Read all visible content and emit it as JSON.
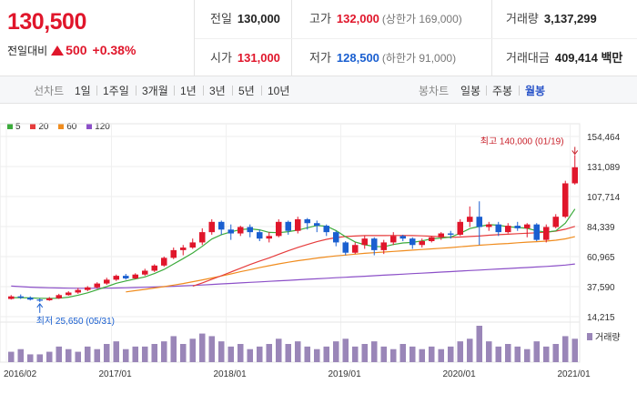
{
  "summary": {
    "price": "130,500",
    "change_label": "전일대비",
    "change_value": "500",
    "change_pct": "+0.38%",
    "prev_close": {
      "label": "전일",
      "value": "130,000"
    },
    "open": {
      "label": "시가",
      "value": "131,000"
    },
    "high": {
      "label": "고가",
      "value": "132,000",
      "note": "(상한가 169,000)"
    },
    "low": {
      "label": "저가",
      "value": "128,500",
      "note": "(하한가 91,000)"
    },
    "volume": {
      "label": "거래량",
      "value": "3,137,299"
    },
    "amount": {
      "label": "거래대금",
      "value": "409,414",
      "unit": "백만"
    }
  },
  "toolbar": {
    "line_label": "선차트",
    "line_periods": [
      "1일",
      "1주일",
      "3개월",
      "1년",
      "3년",
      "5년",
      "10년"
    ],
    "candle_label": "봉차트",
    "candle_periods": [
      "일봉",
      "주봉",
      "월봉"
    ],
    "active_candle": "월봉"
  },
  "colors": {
    "up": "#e0162b",
    "down": "#1a5fd0",
    "ma5": "#3cab3c",
    "ma20": "#e63c3c",
    "ma60": "#f08c1e",
    "ma120": "#8c50c8"
  },
  "chart_data": {
    "type": "candlestick",
    "legend": [
      {
        "name": "5",
        "color": "#3cab3c"
      },
      {
        "name": "20",
        "color": "#e63c3c"
      },
      {
        "name": "60",
        "color": "#f08c1e"
      },
      {
        "name": "120",
        "color": "#8c50c8"
      }
    ],
    "y_ticks": [
      "154,464",
      "131,089",
      "107,714",
      "84,339",
      "60,965",
      "37,590",
      "14,215"
    ],
    "y_tick_values": [
      154464,
      131089,
      107714,
      84339,
      60965,
      37590,
      14215
    ],
    "x_ticks": [
      "2016/02",
      "2017/01",
      "2018/01",
      "2019/01",
      "2020/01",
      "2021/01"
    ],
    "x_tick_index": [
      0,
      11,
      23,
      35,
      47,
      59
    ],
    "volume_label": "거래량",
    "max_annotation": "최고 140,000 (01/19)",
    "min_annotation": "최저 25,650 (05/31)",
    "max_index": 59,
    "min_index": 3,
    "candles": [
      {
        "o": 28000,
        "c": 30000,
        "h": 31000,
        "l": 27500
      },
      {
        "o": 30000,
        "c": 29000,
        "h": 31500,
        "l": 28000
      },
      {
        "o": 29000,
        "c": 27500,
        "h": 30000,
        "l": 26800
      },
      {
        "o": 27500,
        "c": 27000,
        "h": 28500,
        "l": 25650
      },
      {
        "o": 27000,
        "c": 28500,
        "h": 29500,
        "l": 26500
      },
      {
        "o": 28500,
        "c": 31000,
        "h": 32000,
        "l": 28000
      },
      {
        "o": 31000,
        "c": 33000,
        "h": 34000,
        "l": 30500
      },
      {
        "o": 33000,
        "c": 35000,
        "h": 36500,
        "l": 32000
      },
      {
        "o": 35000,
        "c": 37000,
        "h": 38000,
        "l": 34000
      },
      {
        "o": 37000,
        "c": 40000,
        "h": 41000,
        "l": 36000
      },
      {
        "o": 40000,
        "c": 43000,
        "h": 44500,
        "l": 39000
      },
      {
        "o": 43000,
        "c": 46000,
        "h": 47000,
        "l": 42000
      },
      {
        "o": 46000,
        "c": 44000,
        "h": 47500,
        "l": 43000
      },
      {
        "o": 44000,
        "c": 47000,
        "h": 48000,
        "l": 43500
      },
      {
        "o": 47000,
        "c": 50000,
        "h": 51500,
        "l": 46000
      },
      {
        "o": 50000,
        "c": 54000,
        "h": 55000,
        "l": 49000
      },
      {
        "o": 54000,
        "c": 60000,
        "h": 61000,
        "l": 53000
      },
      {
        "o": 60000,
        "c": 66000,
        "h": 68000,
        "l": 59000
      },
      {
        "o": 66000,
        "c": 68000,
        "h": 70000,
        "l": 62000
      },
      {
        "o": 68000,
        "c": 72000,
        "h": 75000,
        "l": 67000
      },
      {
        "o": 72000,
        "c": 80000,
        "h": 83000,
        "l": 70000
      },
      {
        "o": 80000,
        "c": 88000,
        "h": 90000,
        "l": 78000
      },
      {
        "o": 88000,
        "c": 82000,
        "h": 89000,
        "l": 78000
      },
      {
        "o": 82000,
        "c": 79000,
        "h": 86000,
        "l": 74000
      },
      {
        "o": 79000,
        "c": 84000,
        "h": 85000,
        "l": 77000
      },
      {
        "o": 84000,
        "c": 80000,
        "h": 86000,
        "l": 76000
      },
      {
        "o": 80000,
        "c": 75000,
        "h": 82000,
        "l": 73000
      },
      {
        "o": 75000,
        "c": 77000,
        "h": 80000,
        "l": 72000
      },
      {
        "o": 77000,
        "c": 88000,
        "h": 90000,
        "l": 76000
      },
      {
        "o": 88000,
        "c": 81000,
        "h": 89000,
        "l": 78000
      },
      {
        "o": 81000,
        "c": 90000,
        "h": 92000,
        "l": 79000
      },
      {
        "o": 90000,
        "c": 87000,
        "h": 91000,
        "l": 82000
      },
      {
        "o": 87000,
        "c": 85000,
        "h": 89000,
        "l": 80000
      },
      {
        "o": 85000,
        "c": 80000,
        "h": 86000,
        "l": 77000
      },
      {
        "o": 80000,
        "c": 72000,
        "h": 81000,
        "l": 69000
      },
      {
        "o": 72000,
        "c": 64000,
        "h": 73000,
        "l": 62000
      },
      {
        "o": 64000,
        "c": 70000,
        "h": 72000,
        "l": 63000
      },
      {
        "o": 70000,
        "c": 75000,
        "h": 77000,
        "l": 67000
      },
      {
        "o": 75000,
        "c": 66000,
        "h": 76000,
        "l": 62000
      },
      {
        "o": 66000,
        "c": 72000,
        "h": 74000,
        "l": 63000
      },
      {
        "o": 72000,
        "c": 77000,
        "h": 80000,
        "l": 70000
      },
      {
        "o": 77000,
        "c": 75000,
        "h": 78000,
        "l": 73000
      },
      {
        "o": 75000,
        "c": 70000,
        "h": 76000,
        "l": 67000
      },
      {
        "o": 70000,
        "c": 73000,
        "h": 75000,
        "l": 68000
      },
      {
        "o": 73000,
        "c": 76000,
        "h": 77000,
        "l": 72000
      },
      {
        "o": 76000,
        "c": 79000,
        "h": 80000,
        "l": 74000
      },
      {
        "o": 79000,
        "c": 78000,
        "h": 81000,
        "l": 75000
      },
      {
        "o": 78000,
        "c": 88000,
        "h": 90000,
        "l": 77000
      },
      {
        "o": 88000,
        "c": 92000,
        "h": 100000,
        "l": 84000
      },
      {
        "o": 92000,
        "c": 84000,
        "h": 104000,
        "l": 70000
      },
      {
        "o": 84000,
        "c": 86000,
        "h": 88000,
        "l": 81000
      },
      {
        "o": 86000,
        "c": 80000,
        "h": 88000,
        "l": 77000
      },
      {
        "o": 80000,
        "c": 85000,
        "h": 87000,
        "l": 79000
      },
      {
        "o": 85000,
        "c": 83000,
        "h": 88000,
        "l": 81000
      },
      {
        "o": 83000,
        "c": 86000,
        "h": 87000,
        "l": 76000
      },
      {
        "o": 86000,
        "c": 74000,
        "h": 87000,
        "l": 73000
      },
      {
        "o": 74000,
        "c": 84000,
        "h": 86000,
        "l": 72000
      },
      {
        "o": 84000,
        "c": 92000,
        "h": 94000,
        "l": 83000
      },
      {
        "o": 92000,
        "c": 118000,
        "h": 120000,
        "l": 91000
      },
      {
        "o": 118000,
        "c": 130500,
        "h": 140000,
        "l": 117000
      }
    ],
    "ma5": [
      29000,
      29000,
      28800,
      28500,
      28400,
      28600,
      29400,
      30900,
      32800,
      35200,
      37600,
      40200,
      42000,
      43600,
      45200,
      47800,
      51000,
      55200,
      59400,
      63800,
      69000,
      74600,
      78000,
      80200,
      82000,
      82600,
      81800,
      79800,
      79600,
      80400,
      81600,
      83400,
      85200,
      84600,
      81200,
      76400,
      72400,
      70200,
      68800,
      68600,
      70400,
      71600,
      72000,
      73200,
      74800,
      75400,
      76200,
      79200,
      82800,
      84400,
      85800,
      85400,
      84200,
      83600,
      83000,
      81000,
      80000,
      81000,
      87000,
      98000
    ],
    "ma20": [
      null,
      null,
      null,
      null,
      null,
      null,
      null,
      null,
      null,
      null,
      null,
      null,
      null,
      null,
      null,
      null,
      null,
      null,
      null,
      38000,
      40500,
      43300,
      46100,
      49000,
      51900,
      54800,
      57500,
      60000,
      62800,
      65500,
      68100,
      70400,
      72600,
      74400,
      75800,
      76600,
      77000,
      77300,
      77300,
      77300,
      77400,
      77400,
      77300,
      77100,
      76800,
      76400,
      76000,
      76200,
      76600,
      77000,
      77600,
      78000,
      78400,
      78800,
      79200,
      79500,
      80000,
      80800,
      82300,
      84500
    ],
    "ma60": [
      null,
      null,
      null,
      null,
      null,
      null,
      null,
      null,
      null,
      null,
      null,
      null,
      33500,
      34500,
      35500,
      36500,
      37600,
      38800,
      40000,
      41400,
      42800,
      44300,
      45900,
      47500,
      49200,
      50800,
      52400,
      53900,
      55300,
      56600,
      57800,
      58800,
      59800,
      60700,
      61500,
      62200,
      62900,
      63500,
      64000,
      64500,
      65000,
      65500,
      66000,
      66500,
      67000,
      67500,
      68000,
      68600,
      69200,
      69800,
      70300,
      70800,
      71200,
      71700,
      72200,
      72600,
      73000,
      73700,
      74800,
      76500
    ],
    "ma120": [
      38000,
      37600,
      37200,
      36900,
      36700,
      36500,
      36400,
      36300,
      36300,
      36300,
      36400,
      36500,
      36700,
      36900,
      37100,
      37300,
      37600,
      37900,
      38200,
      38500,
      38900,
      39300,
      39700,
      40100,
      40500,
      40900,
      41300,
      41700,
      42100,
      42500,
      42900,
      43300,
      43700,
      44100,
      44500,
      44900,
      45300,
      45700,
      46100,
      46500,
      46900,
      47300,
      47700,
      48100,
      48500,
      48900,
      49300,
      49700,
      50100,
      50500,
      50900,
      51300,
      51700,
      52100,
      52500,
      52900,
      53300,
      53800,
      54400,
      55200
    ],
    "volume": [
      4,
      5,
      3,
      3,
      4,
      6,
      5,
      4,
      6,
      5,
      7,
      8,
      5,
      6,
      6,
      7,
      8,
      10,
      7,
      9,
      11,
      10,
      8,
      6,
      7,
      5,
      6,
      7,
      9,
      7,
      8,
      6,
      5,
      6,
      8,
      9,
      6,
      7,
      8,
      6,
      5,
      7,
      6,
      5,
      6,
      5,
      6,
      8,
      9,
      14,
      8,
      6,
      7,
      6,
      5,
      8,
      6,
      7,
      10,
      9
    ]
  }
}
